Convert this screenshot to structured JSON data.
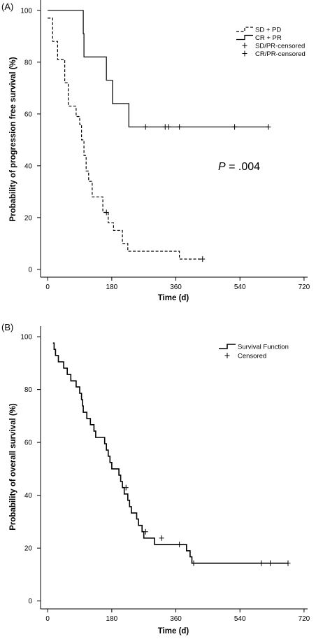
{
  "chart_data": [
    {
      "panel_label": "(A)",
      "type": "line",
      "step": true,
      "xlabel": "Time (d)",
      "ylabel": "Probability of progression free survival (%)",
      "xlim": [
        -20,
        730
      ],
      "ylim": [
        -3,
        104
      ],
      "xticks": [
        0,
        180,
        360,
        540,
        720
      ],
      "yticks": [
        0,
        20,
        40,
        60,
        80,
        100
      ],
      "grid": false,
      "legend_position": "top-right",
      "annotation": {
        "prefix": "P",
        "text": " = .004"
      },
      "legend": [
        {
          "label": "SD + PD",
          "kind": "line",
          "series_index": 0
        },
        {
          "label": "CR + PR",
          "kind": "line",
          "series_index": 1
        },
        {
          "label": "SD/PR-censored",
          "kind": "censor"
        },
        {
          "label": "CR/PR-censored",
          "kind": "censor"
        }
      ],
      "series": [
        {
          "name": "SD + PD",
          "style": "dashed",
          "color": "#000000",
          "points": [
            [
              0,
              97
            ],
            [
              14,
              97
            ],
            [
              14,
              88
            ],
            [
              28,
              88
            ],
            [
              28,
              81
            ],
            [
              48,
              81
            ],
            [
              48,
              72
            ],
            [
              58,
              72
            ],
            [
              58,
              63
            ],
            [
              80,
              63
            ],
            [
              80,
              59
            ],
            [
              90,
              59
            ],
            [
              90,
              56
            ],
            [
              95,
              56
            ],
            [
              95,
              50
            ],
            [
              102,
              50
            ],
            [
              102,
              44
            ],
            [
              108,
              44
            ],
            [
              108,
              38
            ],
            [
              115,
              38
            ],
            [
              115,
              34
            ],
            [
              125,
              34
            ],
            [
              125,
              28
            ],
            [
              155,
              28
            ],
            [
              155,
              22
            ],
            [
              170,
              22
            ],
            [
              170,
              18
            ],
            [
              185,
              18
            ],
            [
              185,
              15
            ],
            [
              210,
              15
            ],
            [
              210,
              10
            ],
            [
              225,
              10
            ],
            [
              225,
              7
            ],
            [
              370,
              7
            ],
            [
              370,
              4
            ],
            [
              435,
              4
            ]
          ],
          "censored": [
            [
              165,
              22
            ],
            [
              435,
              4
            ]
          ]
        },
        {
          "name": "CR + PR",
          "style": "solid",
          "color": "#000000",
          "points": [
            [
              0,
              100
            ],
            [
              100,
              100
            ],
            [
              100,
              91
            ],
            [
              102,
              91
            ],
            [
              102,
              82
            ],
            [
              165,
              82
            ],
            [
              165,
              73
            ],
            [
              182,
              73
            ],
            [
              182,
              64
            ],
            [
              228,
              64
            ],
            [
              228,
              55
            ],
            [
              620,
              55
            ]
          ],
          "censored": [
            [
              275,
              55
            ],
            [
              330,
              55
            ],
            [
              340,
              55
            ],
            [
              370,
              55
            ],
            [
              525,
              55
            ],
            [
              620,
              55
            ]
          ]
        }
      ]
    },
    {
      "panel_label": "(B)",
      "type": "line",
      "step": true,
      "xlabel": "Time (d)",
      "ylabel": "Probability of overall survival (%)",
      "xlim": [
        -20,
        730
      ],
      "ylim": [
        -3,
        104
      ],
      "xticks": [
        0,
        180,
        360,
        540,
        720
      ],
      "yticks": [
        0,
        20,
        40,
        60,
        80,
        100
      ],
      "grid": false,
      "legend_position": "top-right",
      "legend": [
        {
          "label": "Survival Function",
          "kind": "line",
          "series_index": 0
        },
        {
          "label": "Censored",
          "kind": "censor"
        }
      ],
      "series": [
        {
          "name": "Survival Function",
          "style": "solid",
          "color": "#000000",
          "line_width": 1.6,
          "points": [
            [
              15,
              97.6
            ],
            [
              18,
              97.6
            ],
            [
              18,
              95.2
            ],
            [
              22,
              95.2
            ],
            [
              22,
              92.9
            ],
            [
              30,
              92.9
            ],
            [
              30,
              90.5
            ],
            [
              45,
              90.5
            ],
            [
              45,
              88.1
            ],
            [
              55,
              88.1
            ],
            [
              55,
              85.7
            ],
            [
              65,
              85.7
            ],
            [
              65,
              83.3
            ],
            [
              80,
              83.3
            ],
            [
              80,
              81
            ],
            [
              90,
              81
            ],
            [
              90,
              78.6
            ],
            [
              95,
              78.6
            ],
            [
              95,
              76.2
            ],
            [
              98,
              76.2
            ],
            [
              98,
              73.8
            ],
            [
              100,
              73.8
            ],
            [
              100,
              71.4
            ],
            [
              110,
              71.4
            ],
            [
              110,
              69
            ],
            [
              120,
              69
            ],
            [
              120,
              66.7
            ],
            [
              130,
              66.7
            ],
            [
              130,
              64.3
            ],
            [
              135,
              64.3
            ],
            [
              135,
              61.9
            ],
            [
              160,
              61.9
            ],
            [
              160,
              59.5
            ],
            [
              165,
              59.5
            ],
            [
              165,
              57.1
            ],
            [
              170,
              57.1
            ],
            [
              170,
              54.8
            ],
            [
              175,
              54.8
            ],
            [
              175,
              52.4
            ],
            [
              180,
              52.4
            ],
            [
              180,
              50
            ],
            [
              200,
              50
            ],
            [
              200,
              47.6
            ],
            [
              205,
              47.6
            ],
            [
              205,
              45.2
            ],
            [
              210,
              45.2
            ],
            [
              210,
              42.9
            ],
            [
              215,
              42.9
            ],
            [
              215,
              40.5
            ],
            [
              225,
              40.5
            ],
            [
              225,
              38.1
            ],
            [
              230,
              38.1
            ],
            [
              230,
              35.7
            ],
            [
              235,
              35.7
            ],
            [
              235,
              33.3
            ],
            [
              250,
              33.3
            ],
            [
              250,
              31
            ],
            [
              255,
              31
            ],
            [
              255,
              28.6
            ],
            [
              265,
              28.6
            ],
            [
              265,
              26.2
            ],
            [
              270,
              26.2
            ],
            [
              270,
              23.8
            ],
            [
              300,
              23.8
            ],
            [
              300,
              21.4
            ],
            [
              390,
              21.4
            ],
            [
              390,
              19
            ],
            [
              400,
              19
            ],
            [
              400,
              16.7
            ],
            [
              405,
              16.7
            ],
            [
              405,
              14.3
            ],
            [
              675,
              14.3
            ]
          ],
          "censored": [
            [
              220,
              42.9
            ],
            [
              275,
              26.2
            ],
            [
              320,
              23.8
            ],
            [
              370,
              21.4
            ],
            [
              410,
              14.3
            ],
            [
              600,
              14.3
            ],
            [
              625,
              14.3
            ],
            [
              675,
              14.3
            ]
          ]
        }
      ]
    }
  ]
}
